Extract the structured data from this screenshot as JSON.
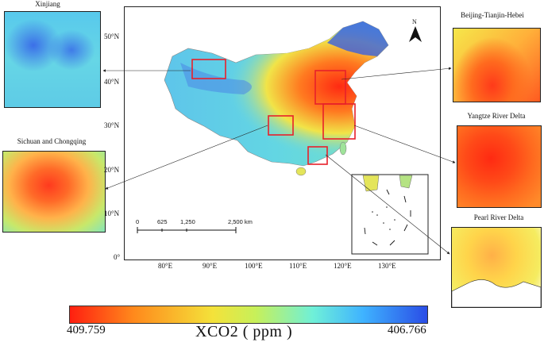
{
  "insets": {
    "xinjiang": "Xinjiang",
    "bth": "Beijing-Tianjin-Hebei",
    "yrd": "Yangtze River Delta",
    "sc": "Sichuan and Chongqing",
    "prd": "Pearl River Delta"
  },
  "lat_ticks": [
    "50°N",
    "40°N",
    "30°N",
    "20°N",
    "10°N",
    "0°"
  ],
  "lon_ticks": [
    "80°E",
    "90°E",
    "100°E",
    "110°E",
    "120°E",
    "130°E"
  ],
  "scale_bar": {
    "labels": [
      "0",
      "625",
      "1,250",
      "2,500 km"
    ]
  },
  "north_arrow": "N",
  "colorbar": {
    "title": "XCO2 ( ppm )",
    "min_label": "409.759",
    "max_label": "406.766"
  },
  "colors": {
    "high": "#ff1f10",
    "mid": "#f4e23a",
    "low": "#2a4de6",
    "highlight_box": "#e8202a"
  }
}
